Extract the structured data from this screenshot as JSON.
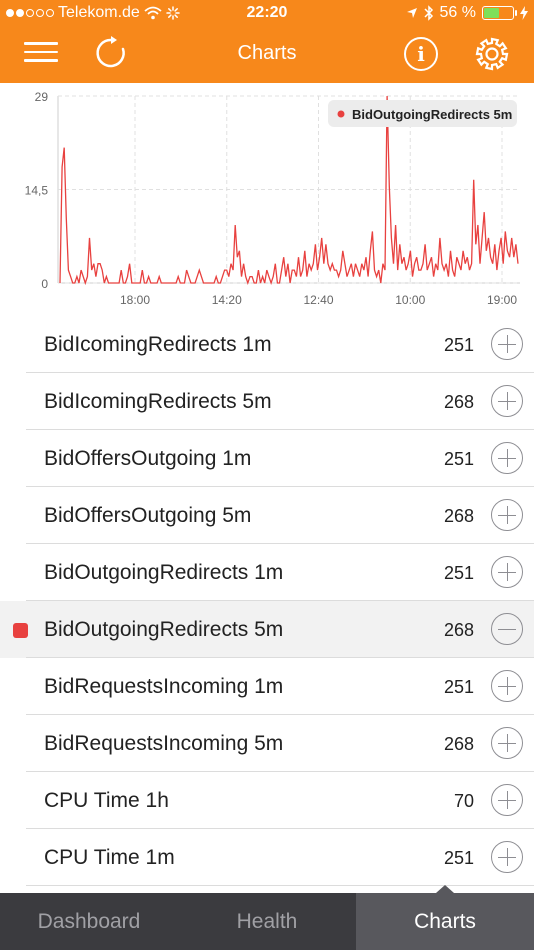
{
  "status_bar": {
    "carrier": "Telekom.de",
    "time": "22:20",
    "battery_text": "56 %",
    "battery_level": 0.56
  },
  "header": {
    "title": "Charts",
    "menu_icon": "hamburger-icon",
    "refresh_icon": "refresh-icon",
    "info_glyph": "i",
    "settings_icon": "gear-icon"
  },
  "chart_data": {
    "type": "line",
    "y_ticks": [
      "29",
      "14,5",
      "0"
    ],
    "ylim": [
      0,
      29
    ],
    "x_ticks": [
      "18:00",
      "14:20",
      "12:40",
      "10:00",
      "19:00"
    ],
    "legend": "BidOutgoingRedirects 5m",
    "legend_placement": "top-right",
    "series": [
      {
        "name": "BidOutgoingRedirects 5m",
        "color": "#e8413f",
        "values": [
          0,
          18,
          21,
          10,
          2,
          1,
          0,
          0,
          1,
          0,
          2,
          1,
          0,
          1,
          7,
          2,
          3,
          1,
          3,
          3,
          2,
          0,
          1,
          0,
          0,
          0,
          0,
          0,
          0,
          2,
          0,
          0,
          1,
          3,
          0,
          0,
          0,
          0,
          0,
          2,
          0,
          0,
          1,
          0,
          0,
          0,
          0,
          1,
          0,
          0,
          0,
          0,
          0,
          0,
          0,
          0,
          1,
          0,
          0,
          0,
          2,
          1,
          0,
          0,
          0,
          1,
          2,
          1,
          0,
          0,
          0,
          0,
          0,
          0,
          1,
          0,
          0,
          1,
          2,
          2,
          1,
          3,
          2,
          9,
          4,
          5,
          1,
          3,
          1,
          0,
          1,
          1,
          0,
          0,
          2,
          0,
          1,
          0,
          2,
          1,
          0,
          1,
          3,
          0,
          0,
          2,
          4,
          1,
          3,
          0,
          2,
          2,
          1,
          4,
          1,
          2,
          5,
          1,
          3,
          2,
          3,
          6,
          2,
          4,
          7,
          3,
          6,
          3,
          2,
          3,
          2,
          2,
          1,
          2,
          5,
          3,
          1,
          2,
          3,
          1,
          3,
          2,
          1,
          3,
          2,
          4,
          1,
          5,
          8,
          2,
          1,
          2,
          0,
          3,
          2,
          29,
          15,
          7,
          3,
          9,
          2,
          6,
          3,
          4,
          2,
          3,
          5,
          1,
          3,
          4,
          2,
          2,
          3,
          6,
          2,
          3,
          4,
          1,
          3,
          2,
          7,
          3,
          2,
          3,
          1,
          5,
          2,
          1,
          4,
          3,
          2,
          5,
          3,
          4,
          2,
          3,
          16,
          6,
          9,
          3,
          7,
          11,
          5,
          7,
          4,
          3,
          6,
          2,
          5,
          7,
          3,
          8,
          5,
          4,
          7,
          4,
          6,
          3
        ]
      }
    ]
  },
  "list": {
    "items": [
      {
        "name": "BidIcomingRedirects 1m",
        "count": "251",
        "selected": false
      },
      {
        "name": "BidIcomingRedirects 5m",
        "count": "268",
        "selected": false
      },
      {
        "name": "BidOffersOutgoing 1m",
        "count": "251",
        "selected": false
      },
      {
        "name": "BidOffersOutgoing 5m",
        "count": "268",
        "selected": false
      },
      {
        "name": "BidOutgoingRedirects 1m",
        "count": "251",
        "selected": false
      },
      {
        "name": "BidOutgoingRedirects 5m",
        "count": "268",
        "selected": true,
        "color": "#e8413f"
      },
      {
        "name": "BidRequestsIncoming 1m",
        "count": "251",
        "selected": false
      },
      {
        "name": "BidRequestsIncoming 5m",
        "count": "268",
        "selected": false
      },
      {
        "name": "CPU Time 1h",
        "count": "70",
        "selected": false
      },
      {
        "name": "CPU Time 1m",
        "count": "251",
        "selected": false
      }
    ]
  },
  "tabbar": {
    "tabs": [
      {
        "label": "Dashboard",
        "active": false
      },
      {
        "label": "Health",
        "active": false
      },
      {
        "label": "Charts",
        "active": true
      }
    ]
  }
}
